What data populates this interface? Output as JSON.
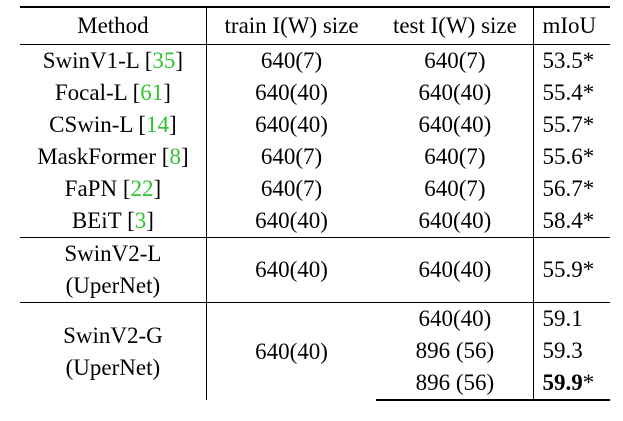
{
  "headers": {
    "method": "Method",
    "train": "train I(W) size",
    "test": "test I(W) size",
    "miou": "mIoU"
  },
  "rows": [
    {
      "method": "SwinV1-L",
      "ref": "35",
      "train": "640(7)",
      "test": "640(7)",
      "miou": "53.5*"
    },
    {
      "method": "Focal-L",
      "ref": "61",
      "train": "640(40)",
      "test": "640(40)",
      "miou": "55.4*"
    },
    {
      "method": "CSwin-L",
      "ref": "14",
      "train": "640(40)",
      "test": "640(40)",
      "miou": "55.7*"
    },
    {
      "method": "MaskFormer",
      "ref": "8",
      "train": "640(7)",
      "test": "640(7)",
      "miou": "55.6*"
    },
    {
      "method": "FaPN",
      "ref": "22",
      "train": "640(7)",
      "test": "640(7)",
      "miou": "56.7*"
    },
    {
      "method": "BEiT",
      "ref": "3",
      "train": "640(40)",
      "test": "640(40)",
      "miou": "58.4*"
    }
  ],
  "swinv2_l": {
    "name": "SwinV2-L",
    "sub": "(UperNet)",
    "train": "640(40)",
    "test": "640(40)",
    "miou": "55.9*"
  },
  "swinv2_g": {
    "name": "SwinV2-G",
    "sub": "(UperNet)",
    "train": "640(40)",
    "tests": [
      "640(40)",
      "896 (56)",
      "896 (56)"
    ],
    "mious": [
      "59.1",
      "59.3",
      "59.9"
    ],
    "best_mark": "*"
  }
}
